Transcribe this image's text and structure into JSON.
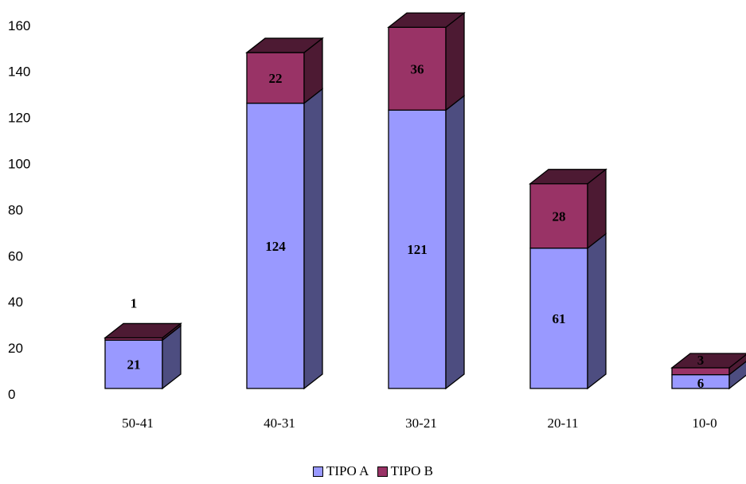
{
  "chart_data": {
    "type": "bar",
    "stacked": true,
    "categories": [
      "50-41",
      "40-31",
      "30-21",
      "20-11",
      "10-0"
    ],
    "series": [
      {
        "name": "TIPO A",
        "values": [
          21,
          124,
          121,
          61,
          6
        ],
        "color": "#9999FF",
        "side_color": "#4D4D80"
      },
      {
        "name": "TIPO B",
        "values": [
          1,
          22,
          36,
          28,
          3
        ],
        "color": "#993366",
        "side_color": "#4D1A33"
      }
    ],
    "yticks": [
      "0",
      "20",
      "40",
      "60",
      "80",
      "100",
      "120",
      "140",
      "160"
    ],
    "ylim": [
      0,
      160
    ],
    "legend_position": "bottom",
    "grid": false
  }
}
